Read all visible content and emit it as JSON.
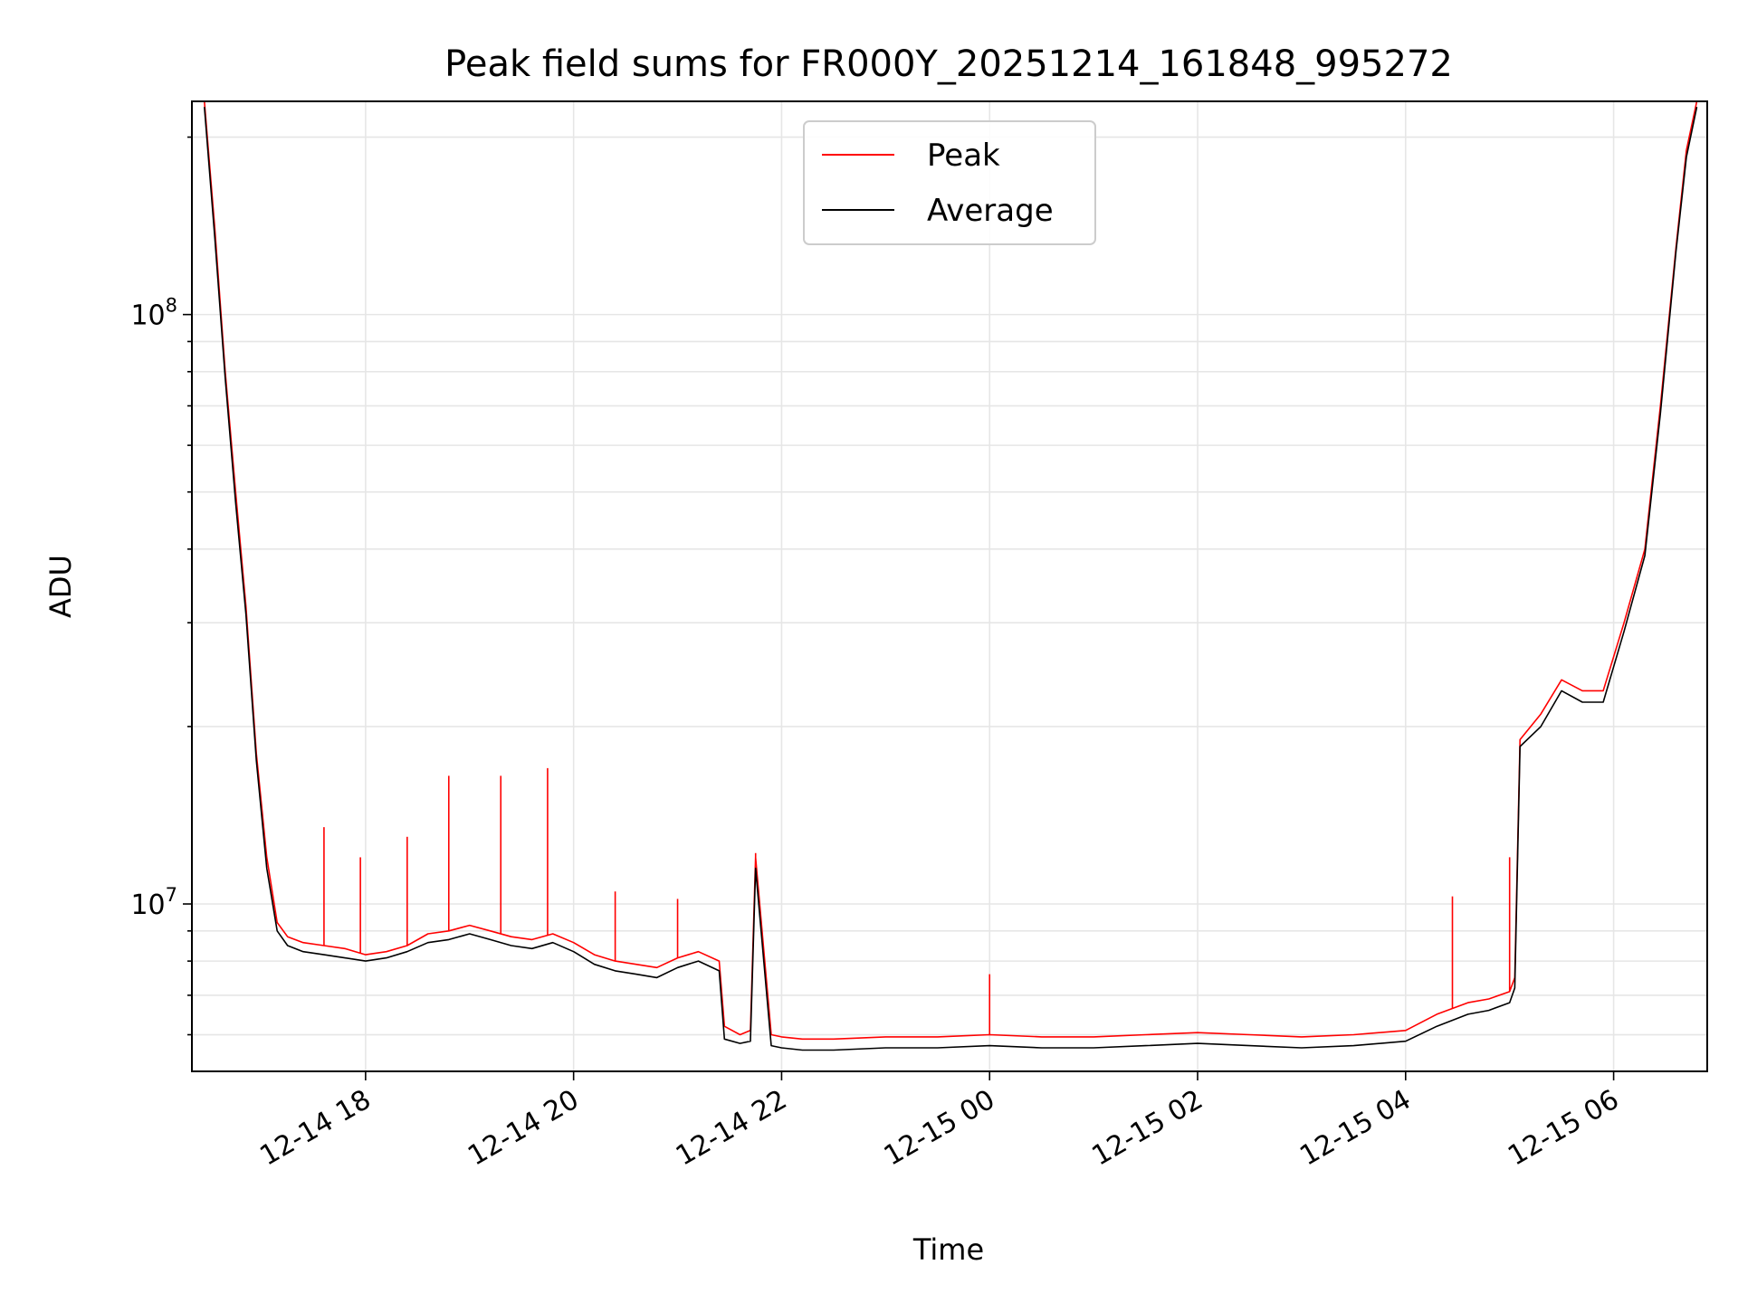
{
  "chart_data": {
    "type": "line",
    "title": "Peak field sums for FR000Y_20251214_161848_995272",
    "xlabel": "Time",
    "ylabel": "ADU",
    "yscale": "log",
    "grid": true,
    "legend_position": "top-center",
    "x_tick_labels": [
      "12-14 18",
      "12-14 20",
      "12-14 22",
      "12-15 00",
      "12-15 02",
      "12-15 04",
      "12-15 06"
    ],
    "x_tick_hours": [
      18,
      20,
      22,
      24,
      26,
      28,
      30
    ],
    "x_range_hours": [
      16.33,
      30.9
    ],
    "y_tick_labels": [
      {
        "base": "10",
        "exp": "7",
        "value": 10000000
      },
      {
        "base": "10",
        "exp": "8",
        "value": 100000000
      }
    ],
    "ylim": [
      5200000,
      230000000
    ],
    "colors": {
      "peak": "#ff0000",
      "average": "#000000"
    },
    "series": [
      {
        "name": "Peak",
        "color": "#ff0000",
        "x_hours": [
          16.45,
          16.55,
          16.65,
          16.75,
          16.85,
          16.95,
          17.05,
          17.15,
          17.25,
          17.4,
          17.6,
          17.8,
          18.0,
          18.2,
          18.4,
          18.6,
          18.8,
          19.0,
          19.2,
          19.4,
          19.6,
          19.8,
          20.0,
          20.2,
          20.4,
          20.6,
          20.8,
          21.0,
          21.2,
          21.4,
          21.45,
          21.6,
          21.7,
          21.75,
          21.9,
          22.0,
          22.2,
          22.5,
          23.0,
          23.5,
          24.0,
          24.5,
          25.0,
          25.5,
          26.0,
          26.5,
          27.0,
          27.5,
          28.0,
          28.3,
          28.6,
          28.8,
          29.0,
          29.05,
          29.1,
          29.3,
          29.5,
          29.7,
          29.9,
          30.1,
          30.3,
          30.45,
          30.6,
          30.7,
          30.8
        ],
        "values": [
          230000000,
          140000000,
          80000000,
          50000000,
          32000000,
          18000000,
          12000000,
          9300000,
          8800000,
          8600000,
          8500000,
          8400000,
          8200000,
          8300000,
          8500000,
          8900000,
          9000000,
          9200000,
          9000000,
          8800000,
          8700000,
          8900000,
          8600000,
          8200000,
          8000000,
          7900000,
          7800000,
          8100000,
          8300000,
          8000000,
          6200000,
          6000000,
          6100000,
          12000000,
          6000000,
          5950000,
          5900000,
          5900000,
          5950000,
          5950000,
          6000000,
          5950000,
          5950000,
          6000000,
          6050000,
          6000000,
          5950000,
          6000000,
          6100000,
          6500000,
          6800000,
          6900000,
          7100000,
          7500000,
          19000000,
          21000000,
          24000000,
          23000000,
          23000000,
          30000000,
          40000000,
          70000000,
          130000000,
          190000000,
          230000000
        ]
      },
      {
        "name": "Average",
        "color": "#000000",
        "x_hours": [
          16.45,
          16.55,
          16.65,
          16.75,
          16.85,
          16.95,
          17.05,
          17.15,
          17.25,
          17.4,
          17.6,
          17.8,
          18.0,
          18.2,
          18.4,
          18.6,
          18.8,
          19.0,
          19.2,
          19.4,
          19.6,
          19.8,
          20.0,
          20.2,
          20.4,
          20.6,
          20.8,
          21.0,
          21.2,
          21.4,
          21.45,
          21.6,
          21.7,
          21.75,
          21.9,
          22.0,
          22.2,
          22.5,
          23.0,
          23.5,
          24.0,
          24.5,
          25.0,
          25.5,
          26.0,
          26.5,
          27.0,
          27.5,
          28.0,
          28.3,
          28.6,
          28.8,
          29.0,
          29.05,
          29.1,
          29.3,
          29.5,
          29.7,
          29.9,
          30.1,
          30.3,
          30.45,
          30.6,
          30.7,
          30.8
        ],
        "values": [
          225000000,
          135000000,
          78000000,
          48000000,
          31000000,
          17500000,
          11500000,
          9000000,
          8500000,
          8300000,
          8200000,
          8100000,
          8000000,
          8100000,
          8300000,
          8600000,
          8700000,
          8900000,
          8700000,
          8500000,
          8400000,
          8600000,
          8300000,
          7900000,
          7700000,
          7600000,
          7500000,
          7800000,
          8000000,
          7700000,
          5900000,
          5800000,
          5850000,
          11500000,
          5750000,
          5700000,
          5650000,
          5650000,
          5700000,
          5700000,
          5750000,
          5700000,
          5700000,
          5750000,
          5800000,
          5750000,
          5700000,
          5750000,
          5850000,
          6200000,
          6500000,
          6600000,
          6800000,
          7200000,
          18500000,
          20000000,
          23000000,
          22000000,
          22000000,
          29000000,
          39000000,
          68000000,
          128000000,
          185000000,
          225000000
        ]
      }
    ],
    "spikes": [
      {
        "series": "Peak",
        "x_hours": 17.6,
        "value": 13500000
      },
      {
        "series": "Peak",
        "x_hours": 17.95,
        "value": 12000000
      },
      {
        "series": "Peak",
        "x_hours": 18.4,
        "value": 13000000
      },
      {
        "series": "Peak",
        "x_hours": 18.8,
        "value": 16500000
      },
      {
        "series": "Peak",
        "x_hours": 19.3,
        "value": 16500000
      },
      {
        "series": "Peak",
        "x_hours": 19.75,
        "value": 17000000
      },
      {
        "series": "Peak",
        "x_hours": 20.4,
        "value": 10500000
      },
      {
        "series": "Peak",
        "x_hours": 21.0,
        "value": 10200000
      },
      {
        "series": "Peak",
        "x_hours": 21.75,
        "value": 12200000
      },
      {
        "series": "Peak",
        "x_hours": 24.0,
        "value": 7600000
      },
      {
        "series": "Peak",
        "x_hours": 28.45,
        "value": 10300000
      },
      {
        "series": "Peak",
        "x_hours": 29.0,
        "value": 12000000
      }
    ],
    "legend": [
      {
        "label": "Peak",
        "color": "#ff0000"
      },
      {
        "label": "Average",
        "color": "#000000"
      }
    ]
  }
}
